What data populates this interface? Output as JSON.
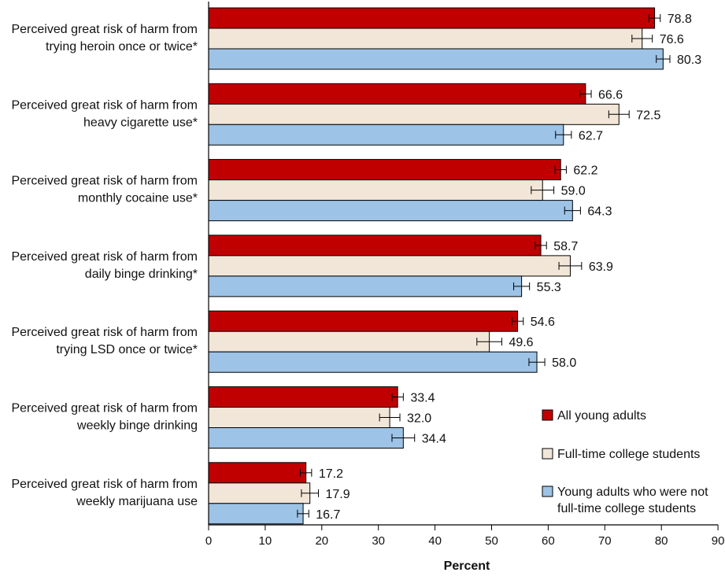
{
  "chart_data": {
    "type": "bar",
    "orientation": "horizontal",
    "categories": [
      [
        "Perceived great risk of harm from",
        "trying heroin once or twice*"
      ],
      [
        "Perceived great risk of harm from",
        "heavy cigarette use*"
      ],
      [
        "Perceived great risk of harm from",
        "monthly cocaine use*"
      ],
      [
        "Perceived great risk of harm from",
        "daily binge drinking*"
      ],
      [
        "Perceived great risk of harm from",
        "trying LSD once or twice*"
      ],
      [
        "Perceived great risk of harm from",
        "weekly binge drinking"
      ],
      [
        "Perceived great risk of harm from",
        "weekly marijuana use"
      ]
    ],
    "series": [
      {
        "name": "All young adults",
        "color": "#c00000",
        "values": [
          78.8,
          66.6,
          62.2,
          58.7,
          54.6,
          33.4,
          17.2
        ],
        "value_labels": [
          "78.8",
          "66.6",
          "62.2",
          "58.7",
          "54.6",
          "33.4",
          "17.2"
        ],
        "error": [
          1.0,
          1.0,
          1.0,
          1.0,
          1.0,
          1.0,
          1.0
        ]
      },
      {
        "name": "Full-time college students",
        "color": "#f2e6d8",
        "values": [
          76.6,
          72.5,
          59.0,
          63.9,
          49.6,
          32.0,
          17.9
        ],
        "value_labels": [
          "76.6",
          "72.5",
          "59.0",
          "63.9",
          "49.6",
          "32.0",
          "17.9"
        ],
        "error": [
          1.8,
          1.8,
          2.0,
          2.0,
          2.2,
          1.8,
          1.5
        ]
      },
      {
        "name": "Young adults who were not full-time college students",
        "legend_lines": [
          "Young adults who were not",
          "full-time college students"
        ],
        "color": "#9dc3e6",
        "values": [
          80.3,
          62.7,
          64.3,
          55.3,
          58.0,
          34.4,
          16.7
        ],
        "value_labels": [
          "80.3",
          "62.7",
          "64.3",
          "55.3",
          "58.0",
          "34.4",
          "16.7"
        ],
        "error": [
          1.2,
          1.4,
          1.4,
          1.4,
          1.4,
          2.0,
          1.0
        ]
      }
    ],
    "xlabel": "Percent",
    "xlim": [
      0,
      90
    ],
    "xticks": [
      0,
      10,
      20,
      30,
      40,
      50,
      60,
      70,
      80,
      90
    ],
    "grid": false,
    "legend_position": "bottom-right"
  }
}
